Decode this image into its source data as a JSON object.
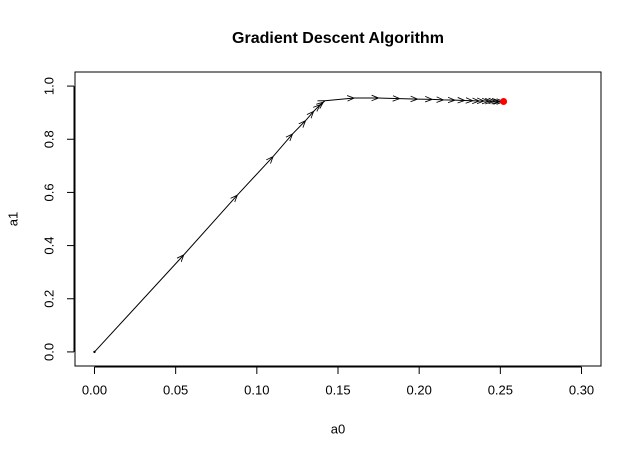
{
  "chart_data": {
    "type": "line",
    "title": "Gradient Descent Algorithm",
    "x_label": "a0",
    "y_label": "a1",
    "x": [
      0,
      0.055,
      0.088,
      0.11,
      0.122,
      0.13,
      0.135,
      0.139,
      0.141,
      0.142,
      0.16,
      0.175,
      0.188,
      0.199,
      0.208,
      0.215,
      0.222,
      0.228,
      0.233,
      0.237,
      0.24,
      0.243,
      0.245,
      0.247,
      0.249,
      0.25,
      0.252
    ],
    "values": [
      0,
      0.365,
      0.59,
      0.735,
      0.82,
      0.87,
      0.905,
      0.93,
      0.94,
      0.945,
      0.955,
      0.955,
      0.953,
      0.951,
      0.95,
      0.948,
      0.947,
      0.946,
      0.945,
      0.944,
      0.944,
      0.943,
      0.943,
      0.943,
      0.942,
      0.942,
      0.942
    ],
    "color": "#000000",
    "final_point": {
      "x": 0.252,
      "y": 0.942,
      "color": "#ff0000"
    },
    "xlim": [
      -0.012,
      0.312
    ],
    "ylim": [
      -0.053,
      1.053
    ],
    "xticks": [
      {
        "value": 0,
        "label": "0.00"
      },
      {
        "value": 0.05,
        "label": "0.05"
      },
      {
        "value": 0.1,
        "label": "0.10"
      },
      {
        "value": 0.15,
        "label": "0.15"
      },
      {
        "value": 0.2,
        "label": "0.20"
      },
      {
        "value": 0.25,
        "label": "0.25"
      },
      {
        "value": 0.3,
        "label": "0.30"
      }
    ],
    "yticks": [
      {
        "value": 0,
        "label": "0.0"
      },
      0.2,
      0.4,
      0.6,
      0.8,
      {
        "value": 1,
        "label": "1.0"
      }
    ],
    "grid": false
  }
}
